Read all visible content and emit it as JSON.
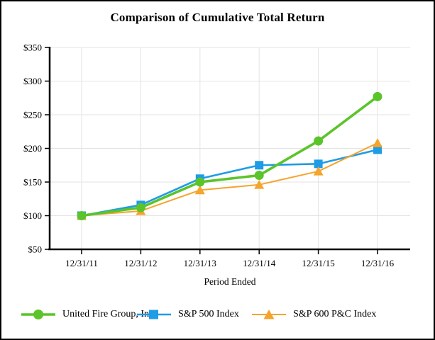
{
  "chart_data": {
    "type": "line",
    "title": "Comparison of Cumulative Total Return",
    "xlabel": "Period Ended",
    "ylabel": "",
    "categories": [
      "12/31/11",
      "12/31/12",
      "12/31/13",
      "12/31/14",
      "12/31/15",
      "12/31/16"
    ],
    "ylim": [
      50,
      350
    ],
    "ytick_step": 50,
    "ytick_labels": [
      "$50",
      "$100",
      "$150",
      "$200",
      "$250",
      "$300",
      "$350"
    ],
    "grid": true,
    "legend_position": "bottom",
    "colors": {
      "grid": "#e3e3e3",
      "axis": "#000000"
    },
    "series": [
      {
        "name": "United Fire Group, Inc.",
        "marker": "circle",
        "color": "#5bc42a",
        "values": [
          100,
          112,
          150,
          160,
          211,
          277
        ]
      },
      {
        "name": "S&P 500 Index",
        "marker": "square",
        "color": "#1e9ce6",
        "values": [
          100,
          116,
          155,
          175,
          177,
          198
        ]
      },
      {
        "name": "S&P 600 P&C Index",
        "marker": "triangle",
        "color": "#f5a42c",
        "values": [
          100,
          107,
          138,
          146,
          166,
          208
        ]
      }
    ]
  }
}
